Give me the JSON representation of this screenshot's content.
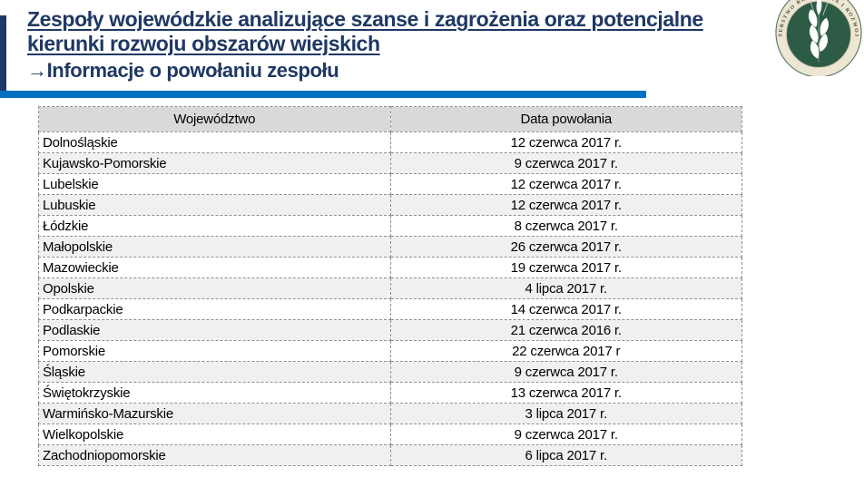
{
  "header": {
    "title_line1": "Zespoły wojewódzkie analizujące szanse i zagrożenia oraz potencjalne",
    "title_line2": "kierunki rozwoju obszarów wiejskich",
    "subtitle": "→Informacje o powołaniu zespołu",
    "title_color": "#1F3864",
    "accent_bar_color": "#0070C0",
    "logo": {
      "icon": "ministry-seal-icon",
      "ring_text": "MINISTERSTWO ROLNICTWA I ROZWOJU WSI",
      "ring_color": "#ECE6D2",
      "center_color": "#2E5B46"
    }
  },
  "table": {
    "columns": [
      "Województwo",
      "Data powołania"
    ],
    "header_bg": "#D9D9D9",
    "alt_row_bg": "#F0F0F0",
    "border_color": "#8f8f8f",
    "rows": [
      [
        "Dolnośląskie",
        "12 czerwca 2017 r."
      ],
      [
        "Kujawsko-Pomorskie",
        "9 czerwca 2017 r."
      ],
      [
        "Lubelskie",
        "12 czerwca 2017 r."
      ],
      [
        "Lubuskie",
        "12 czerwca 2017 r."
      ],
      [
        "Łódzkie",
        "8 czerwca 2017 r."
      ],
      [
        "Małopolskie",
        "26 czerwca 2017 r."
      ],
      [
        "Mazowieckie",
        "19 czerwca 2017 r."
      ],
      [
        "Opolskie",
        "4 lipca 2017 r."
      ],
      [
        "Podkarpackie",
        "14 czerwca 2017 r."
      ],
      [
        "Podlaskie",
        "21 czerwca 2016 r."
      ],
      [
        "Pomorskie",
        "22 czerwca 2017 r"
      ],
      [
        "Śląskie",
        "9 czerwca 2017 r."
      ],
      [
        "Świętokrzyskie",
        "13 czerwca 2017 r."
      ],
      [
        "Warmińsko-Mazurskie",
        "3 lipca 2017 r."
      ],
      [
        "Wielkopolskie",
        "9 czerwca 2017 r."
      ],
      [
        "Zachodniopomorskie",
        "6 lipca 2017 r."
      ]
    ]
  }
}
